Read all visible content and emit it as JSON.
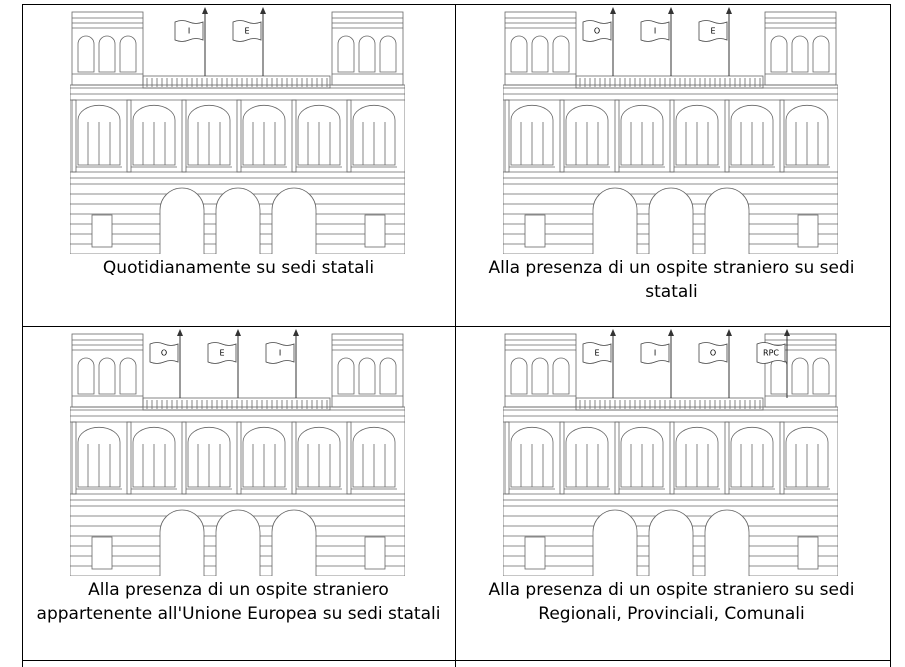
{
  "cells": [
    {
      "flags": [
        "I",
        "E"
      ],
      "caption": "Quotidianamente su sedi statali"
    },
    {
      "flags": [
        "O",
        "I",
        "E"
      ],
      "caption": "Alla presenza di un ospite straniero su sedi statali"
    },
    {
      "flags": [
        "O",
        "E",
        "I"
      ],
      "caption": "Alla presenza di un ospite straniero appartenente all'Unione Europea su sedi statali"
    },
    {
      "flags": [
        "E",
        "I",
        "O",
        "RPC"
      ],
      "caption": "Alla presenza di un ospite straniero su sedi Regionali, Provinciali, Comunali"
    }
  ]
}
